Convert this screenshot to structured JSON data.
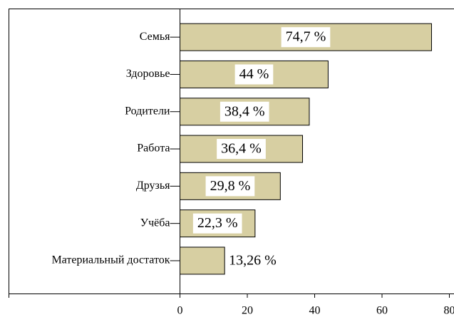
{
  "chart_data": {
    "type": "bar",
    "orientation": "horizontal",
    "categories": [
      "Семья",
      "Здоровье",
      "Родители",
      "Работа",
      "Друзья",
      "Учёба",
      "Материальный достаток"
    ],
    "values": [
      74.7,
      44,
      38.4,
      36.4,
      29.8,
      22.3,
      13.26
    ],
    "value_labels": [
      "74,7 %",
      "44 %",
      "38,4 %",
      "36,4 %",
      "29,8 %",
      "22,3 %",
      "13,26 %"
    ],
    "color": "#d7cfa2",
    "xlim": [
      0,
      80
    ],
    "xticks": [
      0,
      20,
      40,
      60,
      80
    ]
  }
}
